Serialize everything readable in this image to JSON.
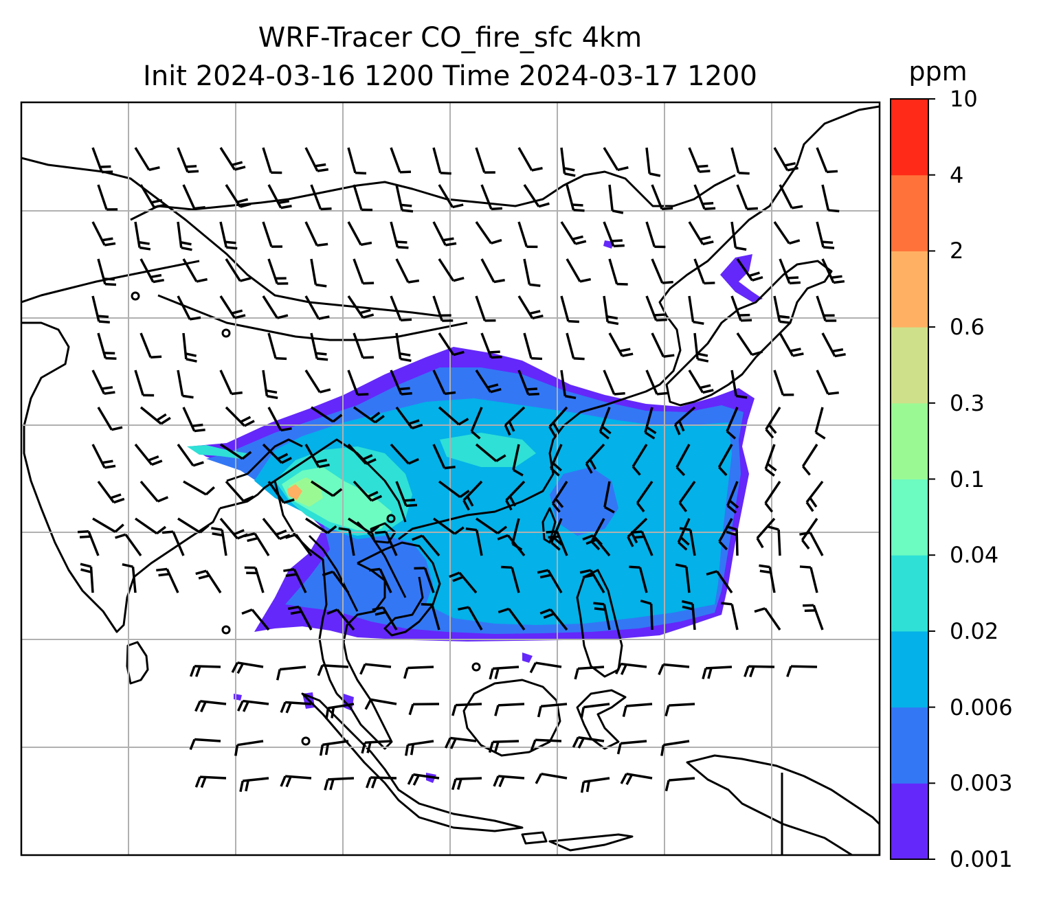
{
  "title": {
    "line1": "WRF-Tracer CO_fire_sfc 4km",
    "line2": "Init 2024-03-16 1200 Time 2024-03-17 1200"
  },
  "colorbar": {
    "unit": "ppm",
    "levels": [
      "0.001",
      "0.003",
      "0.006",
      "0.02",
      "0.04",
      "0.1",
      "0.3",
      "0.6",
      "2",
      "4",
      "10"
    ],
    "colors": [
      "#6428fa",
      "#3377f5",
      "#04b1e8",
      "#2ee0d6",
      "#6cfbc1",
      "#9bf994",
      "#cfe08a",
      "#ffb062",
      "#ff723a",
      "#ff2a18"
    ]
  },
  "map": {
    "gridlines": "on",
    "field_colors": {
      "level1": "#6428fa",
      "level2": "#3377f5",
      "level3": "#04b1e8",
      "level4": "#2ee0d6",
      "level5": "#6cfbc1",
      "level6": "#9bf994",
      "level7": "#ffb062"
    },
    "coastline_color": "#000000",
    "grid_color": "#b0b0b0",
    "barb_color": "#000000"
  }
}
